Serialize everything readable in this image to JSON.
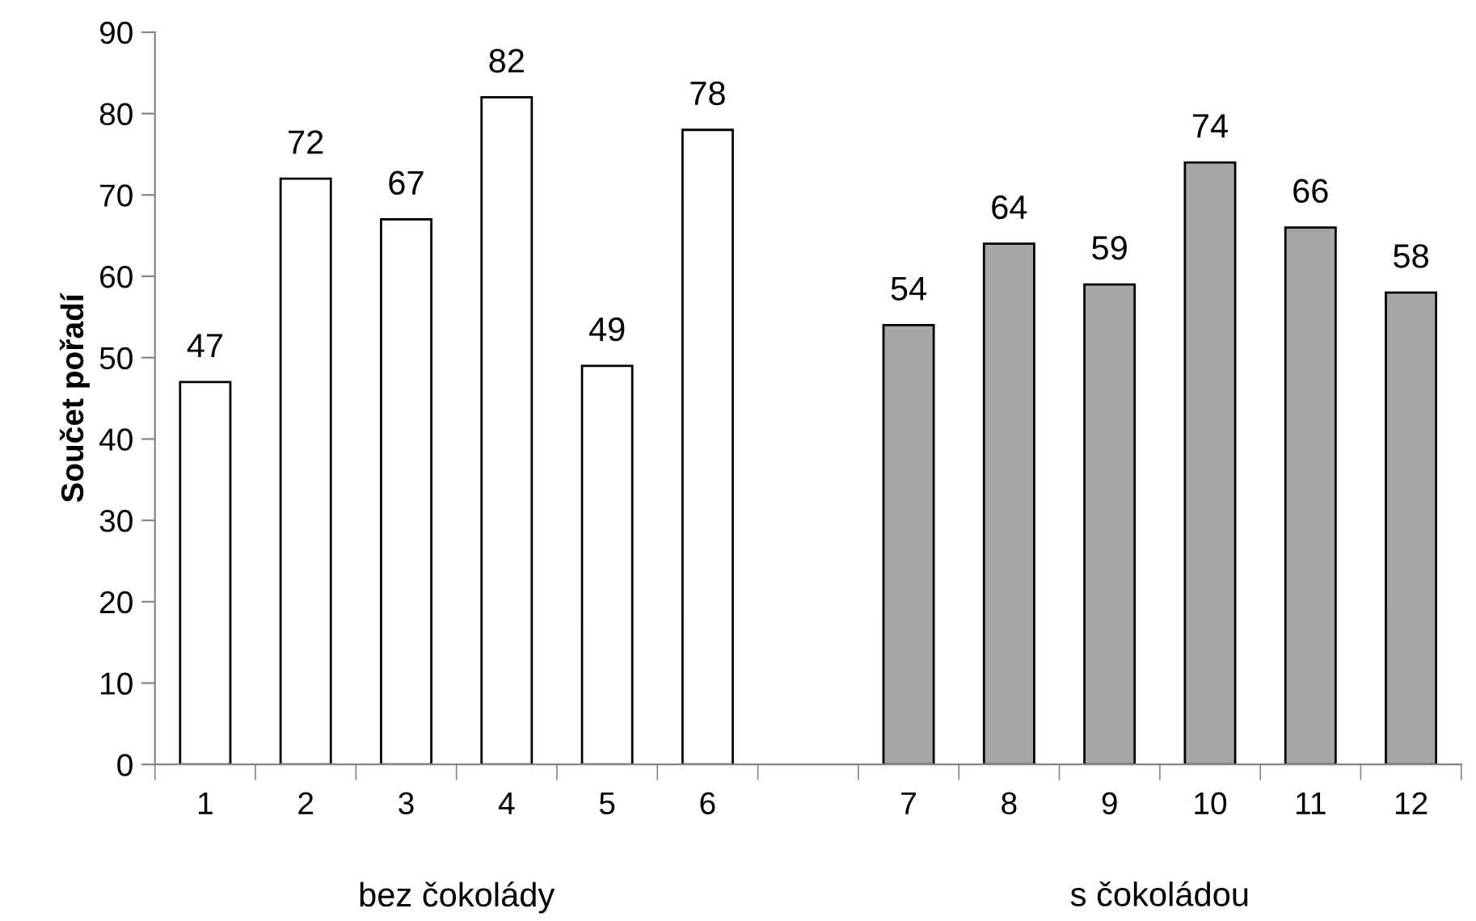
{
  "chart_data": {
    "type": "bar",
    "ylabel": "Součet pořadí",
    "categories": [
      "1",
      "2",
      "3",
      "4",
      "5",
      "6",
      null,
      "7",
      "8",
      "9",
      "10",
      "11",
      "12"
    ],
    "values": [
      47,
      72,
      67,
      82,
      49,
      78,
      null,
      54,
      64,
      59,
      74,
      66,
      58
    ],
    "colors": [
      "#ffffff",
      "#ffffff",
      "#ffffff",
      "#ffffff",
      "#ffffff",
      "#ffffff",
      "#ffffff",
      "#a6a6a6",
      "#a6a6a6",
      "#a6a6a6",
      "#a6a6a6",
      "#a6a6a6",
      "#a6a6a6"
    ],
    "ylim": [
      0,
      90
    ],
    "yticks": [
      0,
      10,
      20,
      30,
      40,
      50,
      60,
      70,
      80,
      90
    ],
    "data_labels": true,
    "annotations": [
      "bez čokolády",
      "s čokoládou"
    ]
  }
}
